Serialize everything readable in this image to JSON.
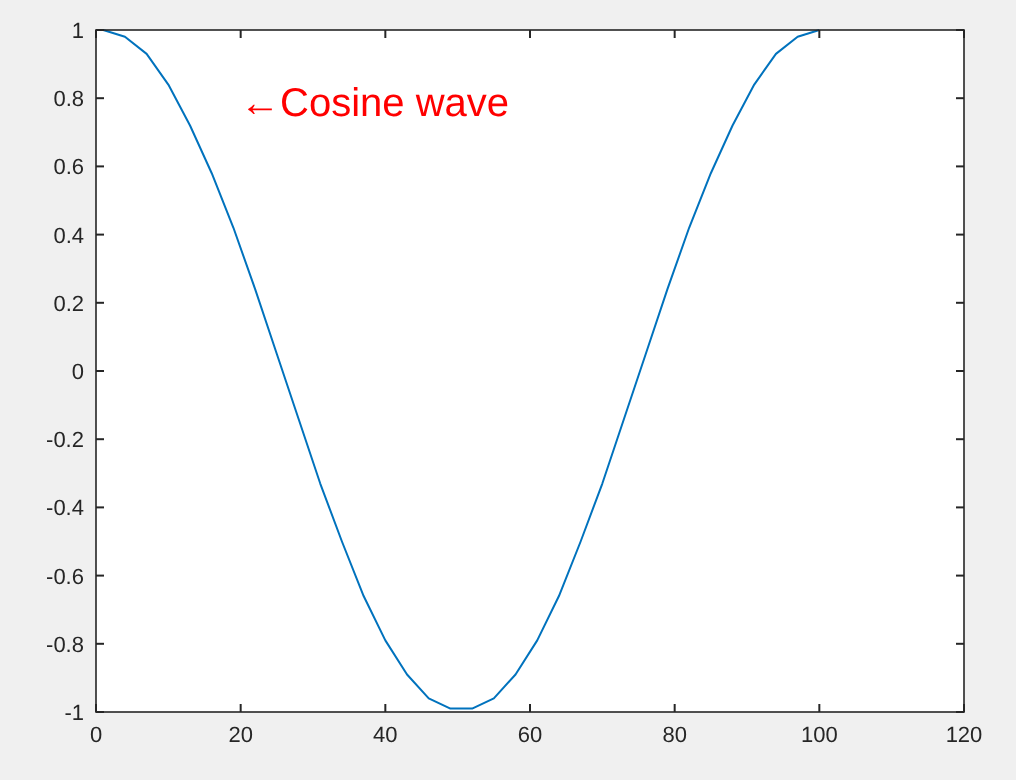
{
  "chart_data": {
    "type": "line",
    "x": [
      1,
      4,
      7,
      10,
      13,
      16,
      19,
      22,
      25,
      28,
      31,
      34,
      37,
      40,
      43,
      46,
      49,
      52,
      55,
      58,
      61,
      64,
      67,
      70,
      73,
      76,
      79,
      82,
      85,
      88,
      91,
      94,
      97,
      100
    ],
    "series": [
      {
        "color": "#0072bd",
        "values": [
          1,
          0.98,
          0.93,
          0.84,
          0.72,
          0.58,
          0.42,
          0.24,
          0.05,
          -0.14,
          -0.33,
          -0.5,
          -0.66,
          -0.79,
          -0.89,
          -0.96,
          -0.99,
          -0.99,
          -0.96,
          -0.89,
          -0.79,
          -0.66,
          -0.5,
          -0.33,
          -0.14,
          0.05,
          0.24,
          0.42,
          0.58,
          0.72,
          0.84,
          0.93,
          0.98,
          1
        ]
      }
    ],
    "xlim": [
      0,
      120
    ],
    "xticks": [
      0,
      20,
      40,
      60,
      80,
      100,
      120
    ],
    "ylim": [
      -1,
      1
    ],
    "yticks": [
      -1,
      -0.8,
      -0.6,
      -0.4,
      -0.2,
      0,
      0.2,
      0.4,
      0.6,
      0.8,
      1
    ],
    "grid": false,
    "marker": "none",
    "line_style": "solid",
    "annotations": [
      "←Cosine wave"
    ]
  }
}
